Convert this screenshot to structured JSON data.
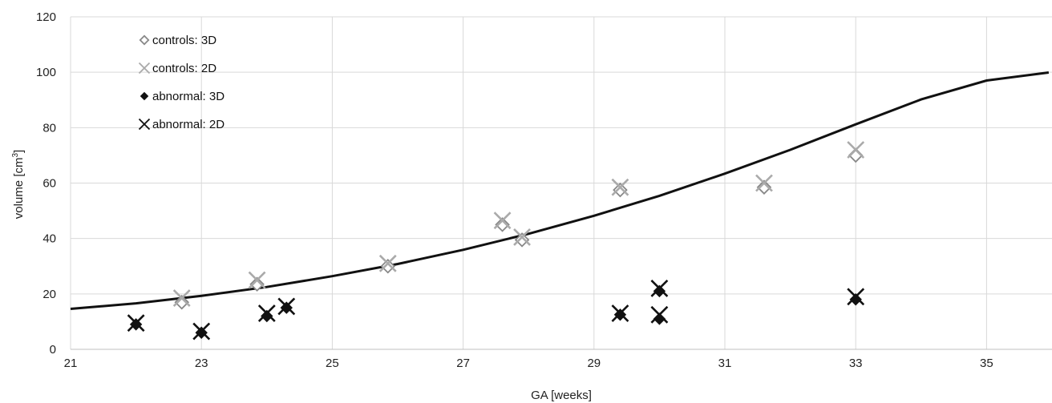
{
  "chart_data": {
    "type": "scatter",
    "xlabel": "GA [weeks]",
    "ylabel_main": "volume [cm",
    "ylabel_sup": "3",
    "ylabel_end": "]",
    "xlim": [
      21,
      36
    ],
    "ylim": [
      0,
      120
    ],
    "x_ticks": [
      "21",
      "23",
      "25",
      "27",
      "29",
      "31",
      "33",
      "35"
    ],
    "y_ticks": [
      "0",
      "20",
      "40",
      "60",
      "80",
      "100",
      "120"
    ],
    "grid": true,
    "legend_position": "top-left",
    "series": [
      {
        "name": "controls: 3D",
        "marker": "open-diamond",
        "color": "#888888",
        "points": [
          [
            22.7,
            17
          ],
          [
            23.85,
            23.5
          ],
          [
            25.85,
            30
          ],
          [
            27.6,
            45
          ],
          [
            27.9,
            39.5
          ],
          [
            29.4,
            57.5
          ],
          [
            31.6,
            58.5
          ],
          [
            33.0,
            70
          ]
        ]
      },
      {
        "name": "controls: 2D",
        "marker": "x",
        "color": "#aaaaaa",
        "points": [
          [
            22.7,
            18.5
          ],
          [
            23.85,
            25
          ],
          [
            25.85,
            31
          ],
          [
            27.6,
            46.5
          ],
          [
            27.9,
            40.5
          ],
          [
            29.4,
            58.5
          ],
          [
            31.6,
            60
          ],
          [
            33.0,
            72
          ]
        ]
      },
      {
        "name": "abnormal: 3D",
        "marker": "filled-diamond",
        "color": "#111111",
        "points": [
          [
            22.0,
            9
          ],
          [
            23.0,
            6
          ],
          [
            24.0,
            12
          ],
          [
            24.3,
            15
          ],
          [
            29.4,
            12.5
          ],
          [
            30.0,
            21
          ],
          [
            30.0,
            11
          ],
          [
            33.0,
            18
          ]
        ]
      },
      {
        "name": "abnormal: 2D",
        "marker": "x",
        "color": "#111111",
        "points": [
          [
            22.0,
            9.5
          ],
          [
            23.0,
            6.5
          ],
          [
            24.0,
            13
          ],
          [
            24.3,
            15.5
          ],
          [
            29.4,
            13
          ],
          [
            30.0,
            22
          ],
          [
            30.0,
            12.5
          ],
          [
            33.0,
            19
          ]
        ]
      }
    ],
    "fit_curve": {
      "type": "exponential",
      "color": "#111111",
      "points": [
        [
          21,
          14.6
        ],
        [
          22,
          16.6
        ],
        [
          23,
          19.3
        ],
        [
          24,
          22.5
        ],
        [
          25,
          26.4
        ],
        [
          26,
          30.8
        ],
        [
          27,
          35.9
        ],
        [
          28,
          41.7
        ],
        [
          29,
          48.2
        ],
        [
          30,
          55.4
        ],
        [
          31,
          63.4
        ],
        [
          32,
          72.0
        ],
        [
          33,
          81.2
        ],
        [
          34,
          90.2
        ],
        [
          35,
          97.0
        ],
        [
          35.95,
          99.9
        ]
      ]
    }
  }
}
